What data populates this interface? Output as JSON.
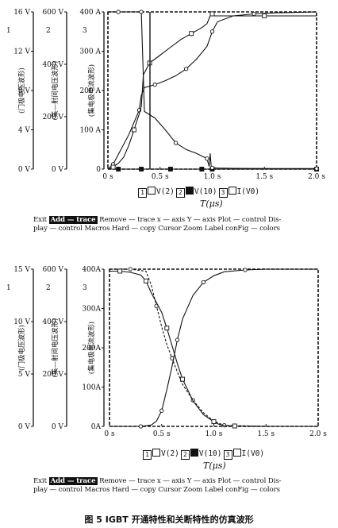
{
  "caption": "图 5  IGBT 开通特性和关断特性的仿真波形",
  "menu": {
    "line1": [
      {
        "label": "Exit",
        "highlight": false
      },
      {
        "label": "Add — trace",
        "highlight": true
      },
      {
        "label": "Remove — trace",
        "highlight": false
      },
      {
        "label": "x — axis",
        "highlight": false
      },
      {
        "label": "Y — axis",
        "highlight": false
      },
      {
        "label": "Plot — control",
        "highlight": false
      },
      {
        "label": "Dis-",
        "highlight": false
      }
    ],
    "line2": [
      {
        "label": "play — control",
        "highlight": false
      },
      {
        "label": "Macros",
        "highlight": false
      },
      {
        "label": "Hard — copy",
        "highlight": false
      },
      {
        "label": "Cursor",
        "highlight": false
      },
      {
        "label": "Zoom",
        "highlight": false
      },
      {
        "label": "Label",
        "highlight": false
      },
      {
        "label": "conFig — colors",
        "highlight": false
      }
    ]
  },
  "legend": {
    "items": [
      {
        "index": "1",
        "marker": "open-square",
        "label": "V(2)"
      },
      {
        "index": "2",
        "marker": "filled-square",
        "label": "V(10)"
      },
      {
        "index": "3",
        "marker": "open-square",
        "label": "I(V0)"
      }
    ]
  },
  "panels": [
    {
      "side_axes": [
        {
          "number": "1",
          "ticks": [
            "16 V",
            "12 V",
            "8 V",
            "4 V",
            "0 V"
          ],
          "title": "(门极电压波形)"
        },
        {
          "number": "2",
          "ticks": [
            "600 V",
            "400 V",
            "200 V",
            "0 V"
          ],
          "title": "(集—射间电压波形)"
        },
        {
          "number": "3",
          "ticks": [
            "400 A",
            "300 A",
            "200 A",
            "100 A",
            "0"
          ],
          "title": "(集电极电流波形)"
        }
      ],
      "xticks": [
        "0 s",
        "0.5 s",
        "1.0 s",
        "1.5 s",
        "2.0 s"
      ],
      "xlabel": "T(μs)",
      "menu_ref": "menu"
    },
    {
      "side_axes": [
        {
          "number": "1",
          "ticks": [
            "15 V",
            "10 V",
            "5 V",
            "0 V"
          ],
          "title": "(门极电压波形)"
        },
        {
          "number": "2",
          "ticks": [
            "600 V",
            "400 V",
            "200 V",
            "0 V"
          ],
          "title": "(集—射间电压波形)"
        },
        {
          "number": "3",
          "ticks": [
            "400A",
            "300A",
            "200A",
            "100A",
            "0A"
          ],
          "title": "(集电极电流波形)"
        }
      ],
      "xticks": [
        "0 s",
        "0.5 s",
        "1.0 s",
        "1.5 s",
        "2.0 s"
      ],
      "xlabel": "T(μs)",
      "menu_ref": "menu"
    }
  ],
  "chart_data": [
    {
      "type": "line",
      "title": "",
      "xlabel": "T(μs)",
      "xlim": [
        0,
        2.0
      ],
      "cursor_x": 0.32,
      "series": [
        {
          "name": "V(2)",
          "axis": "gate voltage (0–16 V)",
          "x": [
            0,
            0.05,
            0.1,
            0.2,
            0.3,
            0.32,
            0.35,
            0.45,
            0.55,
            0.65,
            0.75,
            0.85,
            0.95,
            1.0,
            1.05,
            1.2,
            1.4,
            1.6,
            2.0
          ],
          "y": [
            0,
            0.5,
            1.5,
            3.5,
            6,
            7.5,
            8.3,
            8.6,
            9,
            9.5,
            10.2,
            11.2,
            12.5,
            14,
            15,
            15.6,
            15.8,
            15.9,
            16
          ]
        },
        {
          "name": "V(10)",
          "axis": "collector–emitter voltage (0–600 V)",
          "x": [
            0,
            0.1,
            0.2,
            0.28,
            0.32,
            0.4,
            0.5,
            0.6,
            0.7,
            0.8,
            0.9,
            0.95,
            0.98,
            1.0,
            1.05,
            1.5,
            2.0
          ],
          "y": [
            0,
            0,
            0,
            0,
            0,
            0,
            0,
            0,
            0,
            0,
            0,
            0,
            0,
            0,
            0,
            0,
            0
          ]
        },
        {
          "name": "I(V0)",
          "axis": "collector current (0–400 A)",
          "x": [
            0,
            0.05,
            0.1,
            0.15,
            0.2,
            0.25,
            0.3,
            0.32,
            0.34,
            0.4,
            0.5,
            0.6,
            0.7,
            0.8,
            0.9,
            0.95,
            0.98,
            1.0,
            1.02,
            1.05,
            1.1,
            1.5,
            2.0
          ],
          "y": [
            0,
            5,
            15,
            30,
            60,
            100,
            140,
            160,
            240,
            270,
            290,
            310,
            330,
            345,
            360,
            370,
            390,
            395,
            390,
            390,
            390,
            390,
            390
          ]
        },
        {
          "name": "V(10) falling",
          "axis": "collector–emitter voltage (0–600 V)",
          "x": [
            0,
            0.1,
            0.2,
            0.25,
            0.3,
            0.32,
            0.35,
            0.45,
            0.55,
            0.65,
            0.75,
            0.85,
            0.9,
            0.95,
            0.97,
            0.98,
            0.99,
            1.0,
            1.05,
            1.2,
            1.6,
            2.0
          ],
          "y": [
            600,
            600,
            600,
            600,
            600,
            600,
            220,
            195,
            150,
            100,
            75,
            60,
            50,
            40,
            10,
            60,
            10,
            5,
            4,
            3,
            2,
            2
          ]
        }
      ]
    },
    {
      "type": "line",
      "title": "",
      "xlabel": "T(μs)",
      "xlim": [
        0,
        2.0
      ],
      "series": [
        {
          "name": "V(2)",
          "axis": "gate voltage (0–15 V)",
          "x": [
            0,
            0.2,
            0.35,
            0.4,
            0.45,
            0.5,
            0.55,
            0.6,
            0.65,
            0.7,
            0.8,
            0.9,
            1.0,
            1.1,
            1.5,
            2.0
          ],
          "y": [
            15,
            15,
            14.8,
            13.5,
            11.5,
            9.5,
            7.8,
            6.5,
            5.2,
            4.0,
            2.5,
            1.3,
            0.5,
            0.1,
            0,
            0
          ]
        },
        {
          "name": "V(10)",
          "axis": "collector–emitter voltage (0–600 V)",
          "x": [
            0,
            0.3,
            0.4,
            0.45,
            0.5,
            0.55,
            0.6,
            0.65,
            0.7,
            0.8,
            0.9,
            1.0,
            1.1,
            1.3,
            1.5,
            2.0
          ],
          "y": [
            0,
            0,
            5,
            20,
            60,
            140,
            230,
            330,
            410,
            500,
            550,
            575,
            590,
            597,
            600,
            600
          ]
        },
        {
          "name": "I(V0)",
          "axis": "collector current (0–400 A)",
          "x": [
            0,
            0.1,
            0.2,
            0.3,
            0.35,
            0.4,
            0.5,
            0.55,
            0.6,
            0.65,
            0.7,
            0.8,
            0.9,
            1.0,
            1.05,
            1.1,
            1.2,
            1.5,
            2.0
          ],
          "y": [
            395,
            395,
            392,
            385,
            370,
            340,
            290,
            250,
            205,
            160,
            120,
            65,
            30,
            12,
            5,
            2,
            1,
            0,
            0
          ]
        }
      ]
    }
  ]
}
